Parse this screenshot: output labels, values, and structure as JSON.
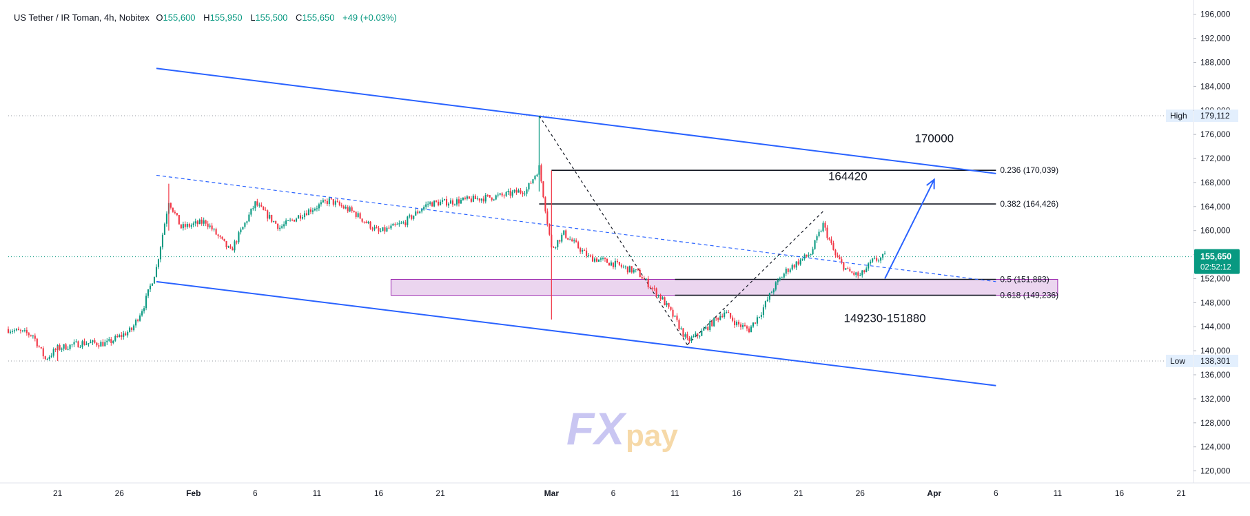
{
  "header": {
    "symbol": "US Tether / IR Toman, 4h, Nobitex",
    "open_label": "O",
    "open": "155,600",
    "high_label": "H",
    "high": "155,950",
    "low_label": "L",
    "low": "155,500",
    "close_label": "C",
    "close": "155,650",
    "change": "+49 (+0.03%)"
  },
  "colors": {
    "up": "#089981",
    "down": "#f23645",
    "channel": "#2962ff",
    "zone_fill": "#e1bee7",
    "zone_stroke": "#9c27b0",
    "price_tag": "#089981",
    "extreme_tag": "#e3effd",
    "text": "#131722"
  },
  "watermark": "FXpay",
  "price_tag": {
    "price": "155,650",
    "countdown": "02:52:12"
  },
  "chart_data": {
    "type": "candlestick",
    "y_axis": {
      "min": 118000,
      "max": 197000,
      "ticks": [
        120000,
        124000,
        128000,
        132000,
        136000,
        140000,
        144000,
        148000,
        152000,
        156000,
        160000,
        164000,
        168000,
        172000,
        176000,
        180000,
        184000,
        188000,
        192000,
        196000
      ],
      "tick_labels": [
        "120,000",
        "124,000",
        "128,000",
        "132,000",
        "136,000",
        "140,000",
        "144,000",
        "148,000",
        "152,000",
        "156,000",
        "160,000",
        "164,000",
        "168,000",
        "172,000",
        "176,000",
        "180,000",
        "184,000",
        "188,000",
        "192,000",
        "196,000"
      ]
    },
    "x_axis": {
      "start": "2024-01-17",
      "end": "2024-04-22",
      "ticks": [
        {
          "date": "2024-01-21",
          "label": "21"
        },
        {
          "date": "2024-01-26",
          "label": "26"
        },
        {
          "date": "2024-02-01",
          "label": "Feb"
        },
        {
          "date": "2024-02-06",
          "label": "6"
        },
        {
          "date": "2024-02-11",
          "label": "11"
        },
        {
          "date": "2024-02-16",
          "label": "16"
        },
        {
          "date": "2024-02-21",
          "label": "21"
        },
        {
          "date": "2024-03-01",
          "label": "Mar"
        },
        {
          "date": "2024-03-06",
          "label": "6"
        },
        {
          "date": "2024-03-11",
          "label": "11"
        },
        {
          "date": "2024-03-16",
          "label": "16"
        },
        {
          "date": "2024-03-21",
          "label": "21"
        },
        {
          "date": "2024-03-26",
          "label": "26"
        },
        {
          "date": "2024-04-01",
          "label": "Apr"
        },
        {
          "date": "2024-04-06",
          "label": "6"
        },
        {
          "date": "2024-04-11",
          "label": "11"
        },
        {
          "date": "2024-04-16",
          "label": "16"
        },
        {
          "date": "2024-04-21",
          "label": "21"
        }
      ]
    },
    "grid": false,
    "close_path": [
      [
        "2024-01-17",
        143600
      ],
      [
        "2024-01-19",
        142600
      ],
      [
        "2024-01-20",
        138600
      ],
      [
        "2024-01-21",
        140400
      ],
      [
        "2024-01-23",
        141300
      ],
      [
        "2024-01-25",
        141200
      ],
      [
        "2024-01-27",
        143500
      ],
      [
        "2024-01-28",
        147600
      ],
      [
        "2024-01-29",
        153800
      ],
      [
        "2024-01-30",
        165000
      ],
      [
        "2024-01-31",
        160500
      ],
      [
        "2024-02-02",
        161500
      ],
      [
        "2024-02-04",
        156500
      ],
      [
        "2024-02-06",
        164500
      ],
      [
        "2024-02-08",
        160500
      ],
      [
        "2024-02-10",
        163000
      ],
      [
        "2024-02-12",
        165000
      ],
      [
        "2024-02-14",
        163000
      ],
      [
        "2024-02-16",
        159700
      ],
      [
        "2024-02-18",
        161200
      ],
      [
        "2024-02-20",
        164500
      ],
      [
        "2024-02-22",
        164800
      ],
      [
        "2024-02-24",
        165300
      ],
      [
        "2024-02-26",
        165800
      ],
      [
        "2024-02-28",
        166800
      ],
      [
        "2024-02-29",
        170500
      ],
      [
        "2024-03-01",
        157000
      ],
      [
        "2024-03-02",
        159500
      ],
      [
        "2024-03-04",
        155600
      ],
      [
        "2024-03-06",
        154500
      ],
      [
        "2024-03-08",
        153000
      ],
      [
        "2024-03-10",
        148500
      ],
      [
        "2024-03-11",
        145300
      ],
      [
        "2024-03-12",
        141600
      ],
      [
        "2024-03-13",
        142800
      ],
      [
        "2024-03-15",
        146500
      ],
      [
        "2024-03-16",
        144500
      ],
      [
        "2024-03-17",
        143500
      ],
      [
        "2024-03-18",
        146500
      ],
      [
        "2024-03-19",
        150500
      ],
      [
        "2024-03-20",
        153300
      ],
      [
        "2024-03-21",
        154800
      ],
      [
        "2024-03-22",
        156200
      ],
      [
        "2024-03-23",
        161000
      ],
      [
        "2024-03-24",
        155800
      ],
      [
        "2024-03-25",
        153200
      ],
      [
        "2024-03-26",
        152400
      ],
      [
        "2024-03-27",
        154900
      ],
      [
        "2024-03-28",
        155650
      ]
    ],
    "spikes": [
      {
        "date": "2024-01-30",
        "high": 167800,
        "low": 160000
      },
      {
        "date": "2024-02-29",
        "high": 179112,
        "low": 166500
      },
      {
        "date": "2024-03-01",
        "high": 170000,
        "low": 145200
      },
      {
        "date": "2024-01-21",
        "high": 140800,
        "low": 138301
      }
    ],
    "annotations": {
      "high_line": {
        "label": "High",
        "value": "179,112",
        "price": 179112
      },
      "low_line": {
        "label": "Low",
        "value": "138,301",
        "price": 138301
      },
      "fib_levels": [
        {
          "ratio": "0.236",
          "label": "0.236 (170,039)",
          "price": 170039,
          "from": "2024-03-01",
          "to": "2024-04-06"
        },
        {
          "ratio": "0.382",
          "label": "0.382 (164,426)",
          "price": 164426,
          "from": "2024-02-29",
          "to": "2024-04-06"
        },
        {
          "ratio": "0.5",
          "label": "0.5 (151,883)",
          "price": 151883,
          "from": "2024-03-11",
          "to": "2024-04-06"
        },
        {
          "ratio": "0.618",
          "label": "0.618 (149,236)",
          "price": 149236,
          "from": "2024-03-11",
          "to": "2024-04-06"
        }
      ],
      "zone": {
        "label": "149230-151880",
        "from": "2024-02-17",
        "to": "2024-04-11",
        "top": 151880,
        "bottom": 149230
      },
      "text_labels": [
        {
          "text": "170000",
          "date": "2024-04-01",
          "price": 174700
        },
        {
          "text": "164420",
          "date": "2024-03-25",
          "price": 168400
        },
        {
          "text": "149230-151880",
          "date": "2024-03-28",
          "price": 144800
        }
      ],
      "channel_upper": [
        [
          "2024-01-29",
          187000
        ],
        [
          "2024-04-06",
          169500
        ]
      ],
      "channel_lower": [
        [
          "2024-01-29",
          151500
        ],
        [
          "2024-04-06",
          134200
        ]
      ],
      "midline": [
        [
          "2024-01-29",
          169200
        ],
        [
          "2024-04-06",
          151500
        ]
      ],
      "swing_down": [
        [
          "2024-02-29",
          179112
        ],
        [
          "2024-03-12",
          141000
        ]
      ],
      "swing_up": [
        [
          "2024-03-12",
          141000
        ],
        [
          "2024-03-23",
          163200
        ]
      ],
      "projection_arrow": [
        [
          "2024-03-28",
          152000
        ],
        [
          "2024-04-01",
          168500
        ]
      ]
    }
  }
}
